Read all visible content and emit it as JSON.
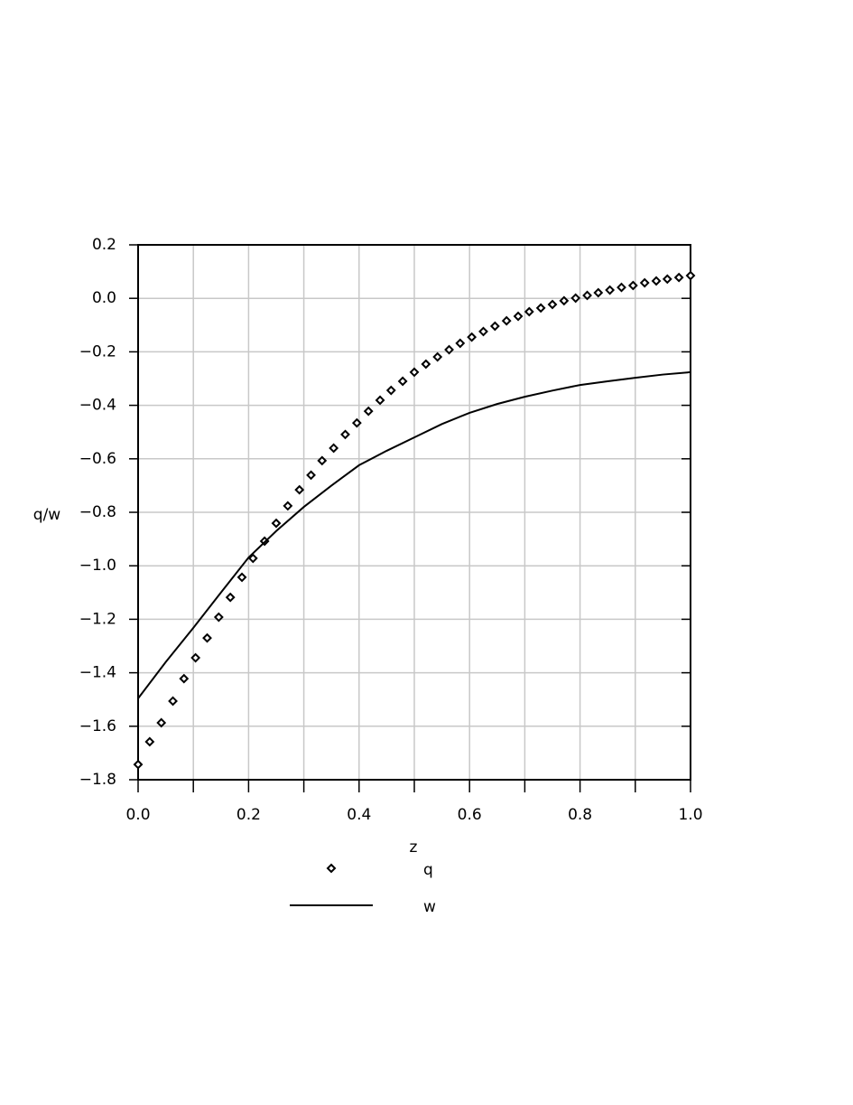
{
  "chart_data": {
    "type": "line",
    "xlabel": "z",
    "ylabel": "q/w",
    "xlim": [
      0,
      1
    ],
    "ylim": [
      -1.8,
      0.2
    ],
    "xticks": [
      {
        "value": 0,
        "label": "0.0"
      },
      0.2,
      0.4,
      0.6,
      0.8,
      {
        "value": 1,
        "label": "1.0"
      }
    ],
    "xticks_minor": [
      0.1,
      0.3,
      0.5,
      0.7,
      0.9
    ],
    "yticks": [
      0.2,
      {
        "value": 0,
        "label": "0.0"
      },
      {
        "value": -0.2,
        "label": "−0.2"
      },
      {
        "value": -0.4,
        "label": "−0.4"
      },
      {
        "value": -0.6,
        "label": "−0.6"
      },
      {
        "value": -0.8,
        "label": "−0.8"
      },
      {
        "value": -1.0,
        "label": "−1.0"
      },
      {
        "value": -1.2,
        "label": "−1.2"
      },
      {
        "value": -1.4,
        "label": "−1.4"
      },
      {
        "value": -1.6,
        "label": "−1.6"
      },
      {
        "value": -1.8,
        "label": "−1.8"
      }
    ],
    "grid": true,
    "legend": "bottom",
    "series": [
      {
        "name": "q",
        "marker": "diamond",
        "color": "#000000",
        "x": [
          0,
          0.021,
          0.042,
          0.063,
          0.083,
          0.104,
          0.125,
          0.146,
          0.167,
          0.188,
          0.208,
          0.229,
          0.25,
          0.271,
          0.292,
          0.313,
          0.333,
          0.354,
          0.375,
          0.396,
          0.417,
          0.438,
          0.458,
          0.479,
          0.5,
          0.521,
          0.542,
          0.563,
          0.583,
          0.604,
          0.625,
          0.646,
          0.667,
          0.688,
          0.708,
          0.729,
          0.75,
          0.771,
          0.792,
          0.813,
          0.833,
          0.854,
          0.875,
          0.896,
          0.917,
          0.938,
          0.958,
          0.979,
          1
        ],
        "values": [
          -1.743,
          -1.658,
          -1.587,
          -1.506,
          -1.422,
          -1.344,
          -1.27,
          -1.192,
          -1.118,
          -1.043,
          -0.972,
          -0.908,
          -0.841,
          -0.776,
          -0.716,
          -0.661,
          -0.607,
          -0.56,
          -0.509,
          -0.466,
          -0.422,
          -0.381,
          -0.344,
          -0.31,
          -0.276,
          -0.246,
          -0.219,
          -0.192,
          -0.168,
          -0.145,
          -0.124,
          -0.104,
          -0.084,
          -0.067,
          -0.05,
          -0.036,
          -0.023,
          -0.009,
          0.001,
          0.011,
          0.021,
          0.031,
          0.041,
          0.048,
          0.058,
          0.065,
          0.072,
          0.078,
          0.085
        ]
      },
      {
        "name": "w",
        "marker": "line",
        "color": "#000000",
        "x": [
          0,
          0.05,
          0.1,
          0.15,
          0.2,
          0.25,
          0.3,
          0.35,
          0.4,
          0.45,
          0.5,
          0.55,
          0.6,
          0.65,
          0.7,
          0.75,
          0.8,
          0.85,
          0.9,
          0.95,
          1
        ],
        "values": [
          -1.496,
          -1.36,
          -1.232,
          -1.1,
          -0.969,
          -0.87,
          -0.78,
          -0.7,
          -0.624,
          -0.57,
          -0.52,
          -0.47,
          -0.428,
          -0.395,
          -0.368,
          -0.345,
          -0.324,
          -0.31,
          -0.297,
          -0.285,
          -0.276
        ]
      }
    ]
  }
}
